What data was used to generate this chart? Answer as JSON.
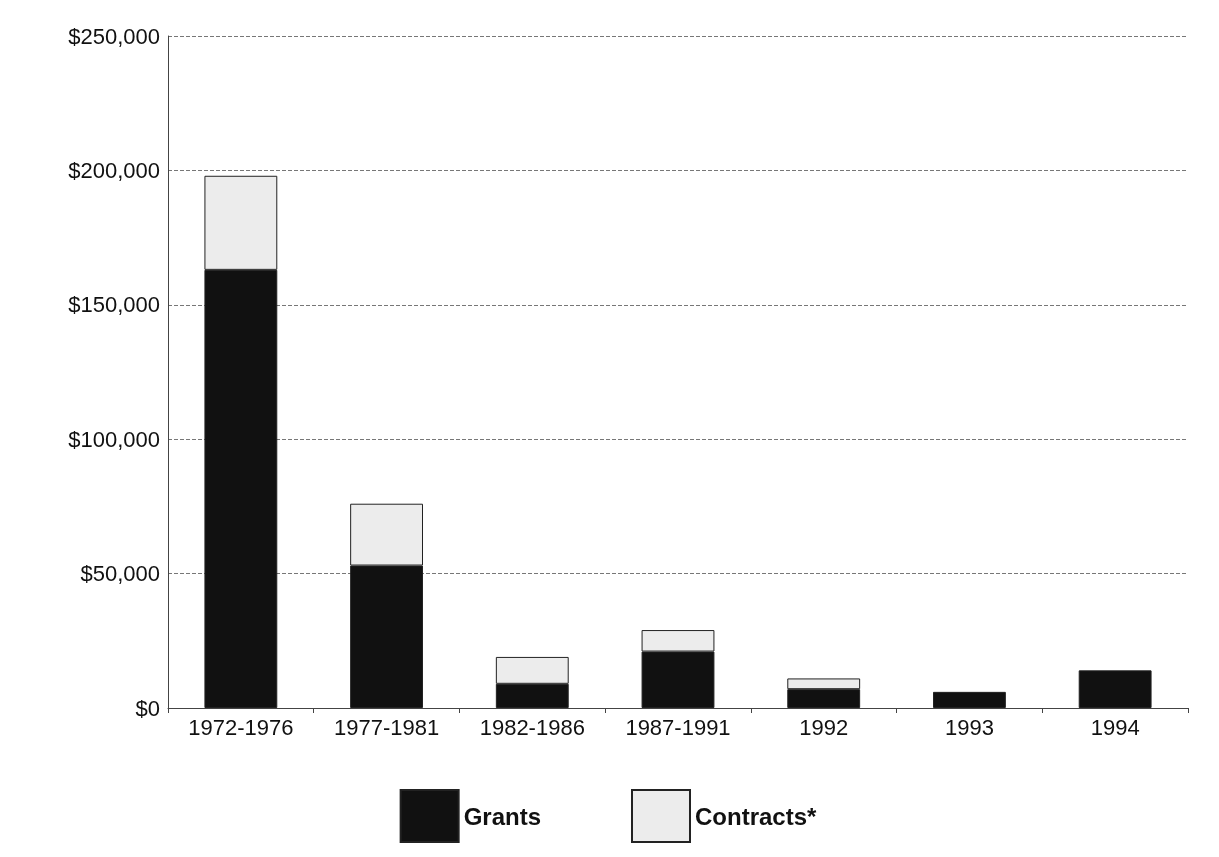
{
  "chart_data": {
    "type": "bar",
    "stacked": true,
    "categories": [
      "1972-1976",
      "1977-1981",
      "1982-1986",
      "1987-1991",
      "1992",
      "1993",
      "1994"
    ],
    "series": [
      {
        "name": "Grants",
        "color": "#111111",
        "values": [
          163000,
          53000,
          9000,
          21000,
          7000,
          6000,
          14000
        ]
      },
      {
        "name": "Contracts*",
        "color": "#ececec",
        "values": [
          35000,
          23000,
          10000,
          8000,
          4000,
          null,
          null
        ]
      }
    ],
    "ylim": [
      0,
      250000
    ],
    "yticks": [
      {
        "value": 0,
        "label": "$0"
      },
      {
        "value": 50000,
        "label": "$50,000"
      },
      {
        "value": 100000,
        "label": "$100,000"
      },
      {
        "value": 150000,
        "label": "$150,000"
      },
      {
        "value": 200000,
        "label": "$200,000"
      },
      {
        "value": 250000,
        "label": "$250,000"
      }
    ],
    "grid": "y",
    "legend": "bottom"
  }
}
